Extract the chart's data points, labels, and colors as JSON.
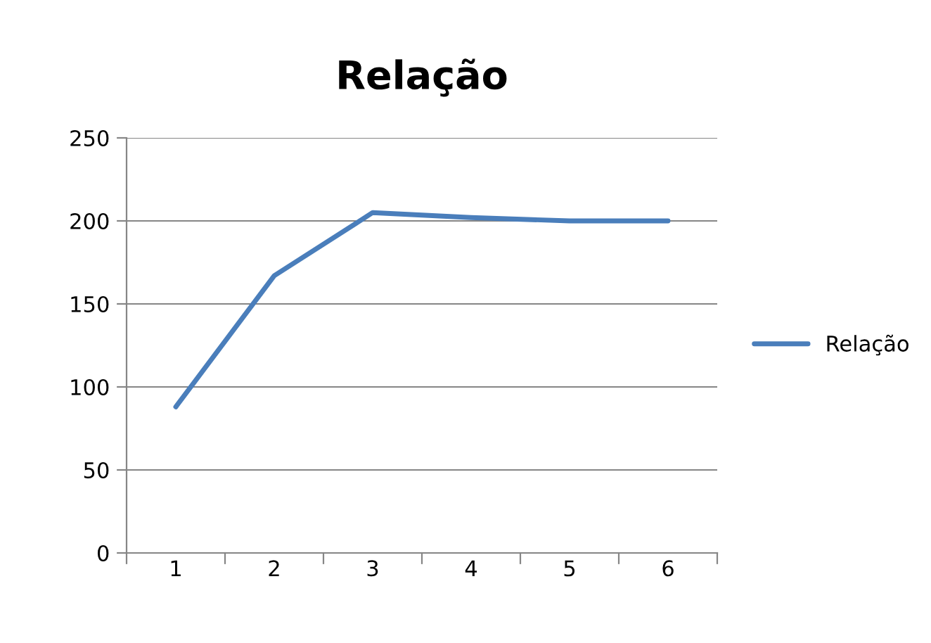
{
  "chart_data": {
    "type": "line",
    "title": "Relação",
    "categories": [
      "1",
      "2",
      "3",
      "4",
      "5",
      "6"
    ],
    "series": [
      {
        "name": "Relação",
        "color": "#4a7ebb",
        "values": [
          88,
          167,
          205,
          202,
          200,
          200
        ]
      }
    ],
    "ylim": [
      0,
      250
    ],
    "yticks": [
      0,
      50,
      100,
      150,
      200,
      250
    ],
    "grid": "y",
    "legend": "right",
    "marker": "none",
    "line_style": "solid"
  }
}
